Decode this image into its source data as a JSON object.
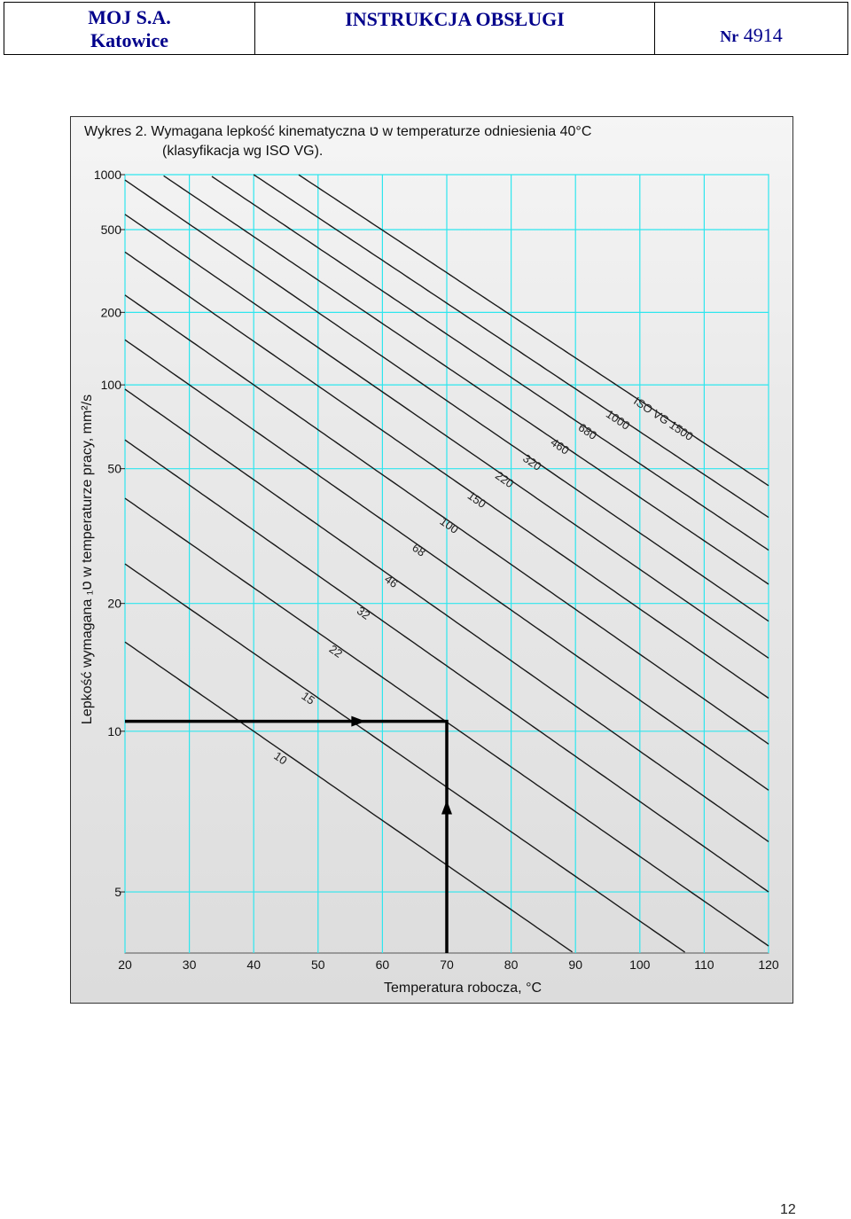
{
  "header": {
    "company": "MOJ S.A.",
    "city": "Katowice",
    "doc_title": "INSTRUKCJA OBSŁUGI",
    "number_prefix": "Nr",
    "number": "4914"
  },
  "colors": {
    "grid": "#2ee6ee",
    "curve": "#1a1a1a",
    "frame_bg": "#e6e6e6",
    "header_text": "#00008b"
  },
  "page_number": "12",
  "chart_data": {
    "type": "line",
    "title_line1": "Wykres 2. Wymagana lepkość kinematyczna  ט  w temperaturze odniesienia 40°C",
    "title_line2": "(klasyfikacja wg ISO VG).",
    "xlabel": "Temperatura robocza, °C",
    "ylabel": "Lepkość wymagana ט₁ w temperaturze pracy, mm²/s",
    "xlim": [
      20,
      120
    ],
    "ylim": [
      4,
      1000
    ],
    "y_scale": "log-log (Walther)",
    "x_ticks": [
      20,
      30,
      40,
      50,
      60,
      70,
      80,
      90,
      100,
      110,
      120
    ],
    "y_ticks": [
      5,
      10,
      20,
      50,
      100,
      200,
      500,
      1000
    ],
    "grid": true,
    "series": [
      {
        "name": "10",
        "label": "10",
        "value_40": 10,
        "value_at_120": 2.6
      },
      {
        "name": "15",
        "label": "15",
        "value_40": 15,
        "value_at_120": 3.3
      },
      {
        "name": "22",
        "label": "22",
        "value_40": 22,
        "value_at_120": 4.1
      },
      {
        "name": "32",
        "label": "32",
        "value_40": 32,
        "value_at_120": 5.0
      },
      {
        "name": "46",
        "label": "46",
        "value_40": 46,
        "value_at_120": 6.1
      },
      {
        "name": "68",
        "label": "68",
        "value_40": 68,
        "value_at_120": 7.6
      },
      {
        "name": "100",
        "label": "100",
        "value_40": 100,
        "value_at_120": 9.4
      },
      {
        "name": "150",
        "label": "150",
        "value_40": 150,
        "value_at_120": 11.8
      },
      {
        "name": "220",
        "label": "220",
        "value_40": 220,
        "value_at_120": 14.6
      },
      {
        "name": "320",
        "label": "320",
        "value_40": 320,
        "value_at_120": 18.0
      },
      {
        "name": "460",
        "label": "460",
        "value_40": 460,
        "value_at_120": 22.5
      },
      {
        "name": "680",
        "label": "680",
        "value_40": 680,
        "value_at_120": 28.0
      },
      {
        "name": "1000",
        "label": "1000",
        "value_40": 1000,
        "value_at_120": 35.0
      },
      {
        "name": "ISO VG 1500",
        "label": "ISO VG 1500",
        "value_40": 1500,
        "value_at_120": 44.0
      }
    ],
    "example_arrow": {
      "path": [
        [
          20,
          10.5
        ],
        [
          70,
          10.5
        ],
        [
          70,
          4
        ]
      ],
      "note_points": [
        [
          56,
          10.5
        ],
        [
          70,
          7
        ]
      ]
    }
  }
}
